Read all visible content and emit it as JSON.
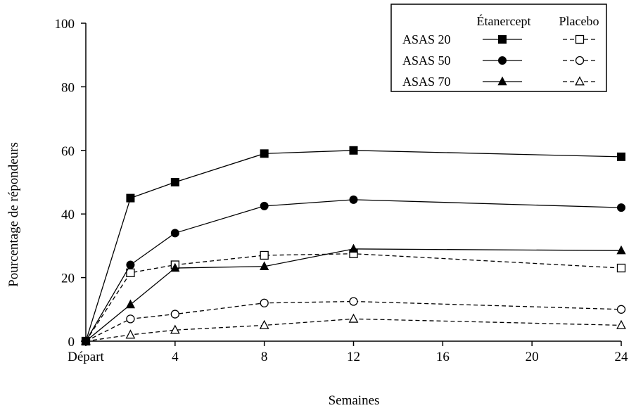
{
  "chart_data": {
    "type": "line",
    "xlabel": "Semaines",
    "ylabel": "Pourcentage de répondeurs",
    "xlim": [
      0,
      24
    ],
    "ylim": [
      0,
      100
    ],
    "x_ticks": [
      {
        "value": 0,
        "label": "Départ"
      },
      {
        "value": 4,
        "label": "4"
      },
      {
        "value": 8,
        "label": "8"
      },
      {
        "value": 12,
        "label": "12"
      },
      {
        "value": 16,
        "label": "16"
      },
      {
        "value": 20,
        "label": "20"
      },
      {
        "value": 24,
        "label": "24"
      }
    ],
    "y_ticks": [
      0,
      20,
      40,
      60,
      80,
      100
    ],
    "grid": false,
    "legend": {
      "placement": "top-right",
      "column_headers": [
        "Étanercept",
        "Placebo"
      ],
      "row_labels": [
        "ASAS 20",
        "ASAS 50",
        "ASAS 70"
      ]
    },
    "x": [
      0,
      2,
      4,
      8,
      12,
      24
    ],
    "series": [
      {
        "name": "ASAS 20 Étanercept",
        "group": "ASAS 20",
        "arm": "Étanercept",
        "marker": "square",
        "filled": true,
        "dashed": false,
        "values": [
          0,
          45,
          50,
          59,
          60,
          58
        ]
      },
      {
        "name": "ASAS 50 Étanercept",
        "group": "ASAS 50",
        "arm": "Étanercept",
        "marker": "circle",
        "filled": true,
        "dashed": false,
        "values": [
          0,
          24,
          34,
          42.5,
          44.5,
          42
        ]
      },
      {
        "name": "ASAS 70 Étanercept",
        "group": "ASAS 70",
        "arm": "Étanercept",
        "marker": "triangle",
        "filled": true,
        "dashed": false,
        "values": [
          0,
          11.5,
          23,
          23.5,
          29,
          28.5
        ]
      },
      {
        "name": "ASAS 20 Placebo",
        "group": "ASAS 20",
        "arm": "Placebo",
        "marker": "square",
        "filled": false,
        "dashed": true,
        "values": [
          0,
          21.5,
          24,
          27,
          27.5,
          23
        ]
      },
      {
        "name": "ASAS 50 Placebo",
        "group": "ASAS 50",
        "arm": "Placebo",
        "marker": "circle",
        "filled": false,
        "dashed": true,
        "values": [
          0,
          7,
          8.5,
          12,
          12.5,
          10
        ]
      },
      {
        "name": "ASAS 70 Placebo",
        "group": "ASAS 70",
        "arm": "Placebo",
        "marker": "triangle",
        "filled": false,
        "dashed": true,
        "values": [
          0,
          2,
          3.5,
          5,
          7,
          5
        ]
      }
    ]
  }
}
